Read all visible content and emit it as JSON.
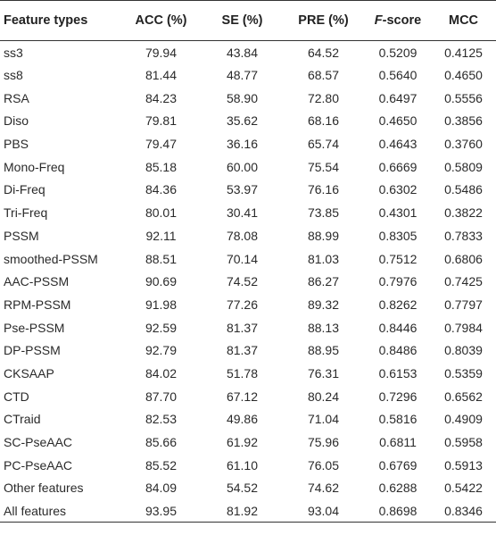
{
  "table": {
    "headers": {
      "feature_types": "Feature types",
      "acc": "ACC (%)",
      "se": "SE (%)",
      "pre": "PRE (%)",
      "f_italic": "F",
      "f_rest": "-score",
      "mcc": "MCC"
    },
    "rows": [
      {
        "feature": "ss3",
        "acc": "79.94",
        "se": "43.84",
        "pre": "64.52",
        "f": "0.5209",
        "mcc": "0.4125"
      },
      {
        "feature": "ss8",
        "acc": "81.44",
        "se": "48.77",
        "pre": "68.57",
        "f": "0.5640",
        "mcc": "0.4650"
      },
      {
        "feature": "RSA",
        "acc": "84.23",
        "se": "58.90",
        "pre": "72.80",
        "f": "0.6497",
        "mcc": "0.5556"
      },
      {
        "feature": "Diso",
        "acc": "79.81",
        "se": "35.62",
        "pre": "68.16",
        "f": "0.4650",
        "mcc": "0.3856"
      },
      {
        "feature": "PBS",
        "acc": "79.47",
        "se": "36.16",
        "pre": "65.74",
        "f": "0.4643",
        "mcc": "0.3760"
      },
      {
        "feature": "Mono-Freq",
        "acc": "85.18",
        "se": "60.00",
        "pre": "75.54",
        "f": "0.6669",
        "mcc": "0.5809"
      },
      {
        "feature": "Di-Freq",
        "acc": "84.36",
        "se": "53.97",
        "pre": "76.16",
        "f": "0.6302",
        "mcc": "0.5486"
      },
      {
        "feature": "Tri-Freq",
        "acc": "80.01",
        "se": "30.41",
        "pre": "73.85",
        "f": "0.4301",
        "mcc": "0.3822"
      },
      {
        "feature": "PSSM",
        "acc": "92.11",
        "se": "78.08",
        "pre": "88.99",
        "f": "0.8305",
        "mcc": "0.7833"
      },
      {
        "feature": "smoothed-PSSM",
        "acc": "88.51",
        "se": "70.14",
        "pre": "81.03",
        "f": "0.7512",
        "mcc": "0.6806"
      },
      {
        "feature": "AAC-PSSM",
        "acc": "90.69",
        "se": "74.52",
        "pre": "86.27",
        "f": "0.7976",
        "mcc": "0.7425"
      },
      {
        "feature": "RPM-PSSM",
        "acc": "91.98",
        "se": "77.26",
        "pre": "89.32",
        "f": "0.8262",
        "mcc": "0.7797"
      },
      {
        "feature": "Pse-PSSM",
        "acc": "92.59",
        "se": "81.37",
        "pre": "88.13",
        "f": "0.8446",
        "mcc": "0.7984"
      },
      {
        "feature": "DP-PSSM",
        "acc": "92.79",
        "se": "81.37",
        "pre": "88.95",
        "f": "0.8486",
        "mcc": "0.8039"
      },
      {
        "feature": "CKSAAP",
        "acc": "84.02",
        "se": "51.78",
        "pre": "76.31",
        "f": "0.6153",
        "mcc": "0.5359"
      },
      {
        "feature": "CTD",
        "acc": "87.70",
        "se": "67.12",
        "pre": "80.24",
        "f": "0.7296",
        "mcc": "0.6562"
      },
      {
        "feature": "CTraid",
        "acc": "82.53",
        "se": "49.86",
        "pre": "71.04",
        "f": "0.5816",
        "mcc": "0.4909"
      },
      {
        "feature": "SC-PseAAC",
        "acc": "85.66",
        "se": "61.92",
        "pre": "75.96",
        "f": "0.6811",
        "mcc": "0.5958"
      },
      {
        "feature": "PC-PseAAC",
        "acc": "85.52",
        "se": "61.10",
        "pre": "76.05",
        "f": "0.6769",
        "mcc": "0.5913"
      },
      {
        "feature": "Other features",
        "acc": "84.09",
        "se": "54.52",
        "pre": "74.62",
        "f": "0.6288",
        "mcc": "0.5422"
      },
      {
        "feature": "All features",
        "acc": "93.95",
        "se": "81.92",
        "pre": "93.04",
        "f": "0.8698",
        "mcc": "0.8346"
      }
    ]
  }
}
